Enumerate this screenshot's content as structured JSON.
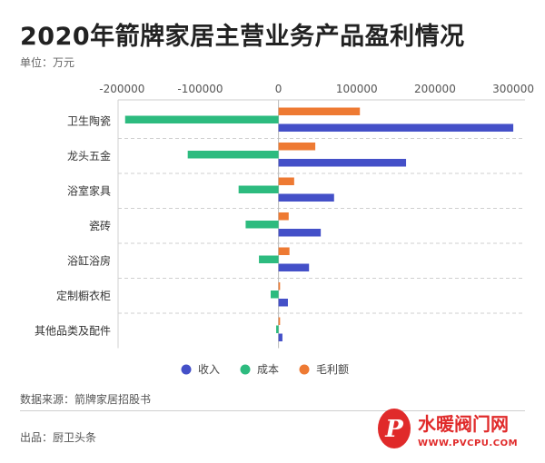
{
  "header": {
    "title": "2020年箭牌家居主营业务产品盈利情况",
    "unit": "单位：万元"
  },
  "footer": {
    "source": "数据来源：箭牌家居招股书",
    "producer": "出品：厨卫头条"
  },
  "watermark": {
    "logo": "P",
    "text": "水暖阀门网",
    "url": "WWW.PVCPU.COM"
  },
  "colors": {
    "收入": "#4450c8",
    "成本": "#2dbb7f",
    "毛利额": "#ee7a33"
  },
  "chart_data": {
    "type": "bar",
    "orientation": "horizontal",
    "categories": [
      "卫生陶瓷",
      "龙头五金",
      "浴室家具",
      "瓷砖",
      "浴缸浴房",
      "定制橱衣柜",
      "其他品类及配件"
    ],
    "series": [
      {
        "name": "收入",
        "values": [
          300000,
          163000,
          71000,
          54000,
          39000,
          12000,
          5000
        ]
      },
      {
        "name": "成本",
        "values": [
          -196000,
          -116000,
          -51000,
          -42000,
          -25000,
          -10000,
          -3000
        ]
      },
      {
        "name": "毛利额",
        "values": [
          104000,
          47000,
          20000,
          13000,
          14000,
          2000,
          2000
        ]
      }
    ],
    "xlim": [
      -205000,
      315000
    ],
    "xticks": [
      -200000,
      -100000,
      0,
      100000,
      200000,
      300000
    ],
    "xtick_labels": [
      "-200000",
      "-100000",
      "0",
      "100000",
      "200000",
      "300000"
    ],
    "grid": true,
    "legend_position": "bottom-center"
  }
}
